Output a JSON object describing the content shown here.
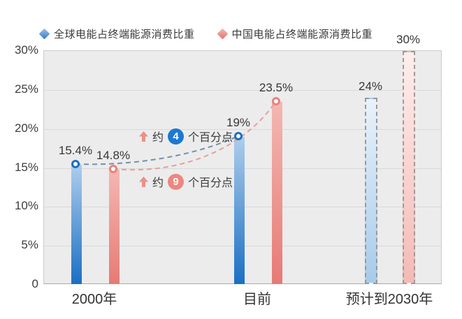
{
  "legend": {
    "items": [
      {
        "icon": "blue-diamond-icon",
        "label": "全球电能占终端能源消费比重",
        "color": "#2f7cc9"
      },
      {
        "icon": "red-diamond-icon",
        "label": "中国电能占终端能源消费比重",
        "color": "#e2746f"
      }
    ]
  },
  "chart_data": {
    "type": "bar",
    "title": "",
    "categories": [
      "2000年",
      "目前",
      "预计到2030年"
    ],
    "series": [
      {
        "name": "全球电能占终端能源消费比重",
        "color": "#1a6fc4",
        "values": [
          15.4,
          19,
          24
        ],
        "labels": [
          "15.4%",
          "19%",
          "24%"
        ]
      },
      {
        "name": "中国电能占终端能源消费比重",
        "color": "#e8837e",
        "values": [
          14.8,
          23.5,
          30
        ],
        "labels": [
          "14.8%",
          "23.5%",
          "30%"
        ]
      }
    ],
    "projected_category_index": 2,
    "projected_style": "dashed-outline",
    "ylim": [
      0,
      30
    ],
    "ytick_labels": [
      "30%",
      "25%",
      "20%",
      "15%",
      "10%",
      "5%",
      "0"
    ],
    "grid": true,
    "legend_position": "top",
    "trend_lines": [
      {
        "series": "全球电能占终端能源消费比重",
        "from_category": "2000年",
        "to_category": "目前",
        "style": "dashed",
        "color": "#7590a8"
      },
      {
        "series": "中国电能占终端能源消费比重",
        "from_category": "2000年",
        "to_category": "目前",
        "style": "dashed",
        "color": "#e3a09b"
      }
    ],
    "annotations": [
      {
        "arrow": "up-arrow",
        "prefix": "约",
        "number": "4",
        "suffix": "个百分点",
        "badge_color": "#1d78d2",
        "arrow_color": "#ec9089"
      },
      {
        "arrow": "up-arrow",
        "prefix": "约",
        "number": "9",
        "suffix": "个百分点",
        "badge_color": "#ec8781",
        "arrow_color": "#ec9089"
      }
    ]
  }
}
